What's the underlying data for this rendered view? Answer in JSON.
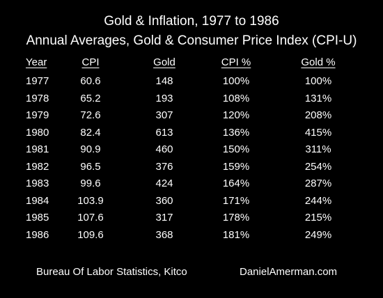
{
  "header": {
    "title": "Gold & Inflation, 1977 to 1986",
    "subtitle": "Annual Averages, Gold & Consumer Price Index (CPI-U)"
  },
  "chart_data": {
    "type": "table",
    "columns": [
      "Year",
      "CPI",
      "Gold",
      "CPI %",
      "Gold %"
    ],
    "rows": [
      [
        "1977",
        "60.6",
        "148",
        "100%",
        "100%"
      ],
      [
        "1978",
        "65.2",
        "193",
        "108%",
        "131%"
      ],
      [
        "1979",
        "72.6",
        "307",
        "120%",
        "208%"
      ],
      [
        "1980",
        "82.4",
        "613",
        "136%",
        "415%"
      ],
      [
        "1981",
        "90.9",
        "460",
        "150%",
        "311%"
      ],
      [
        "1982",
        "96.5",
        "376",
        "159%",
        "254%"
      ],
      [
        "1983",
        "99.6",
        "424",
        "164%",
        "287%"
      ],
      [
        "1984",
        "103.9",
        "360",
        "171%",
        "244%"
      ],
      [
        "1985",
        "107.6",
        "317",
        "178%",
        "215%"
      ],
      [
        "1986",
        "109.6",
        "368",
        "181%",
        "249%"
      ]
    ]
  },
  "footer": {
    "source": "Bureau Of Labor Statistics, Kitco",
    "site": "DanielAmerman.com"
  }
}
